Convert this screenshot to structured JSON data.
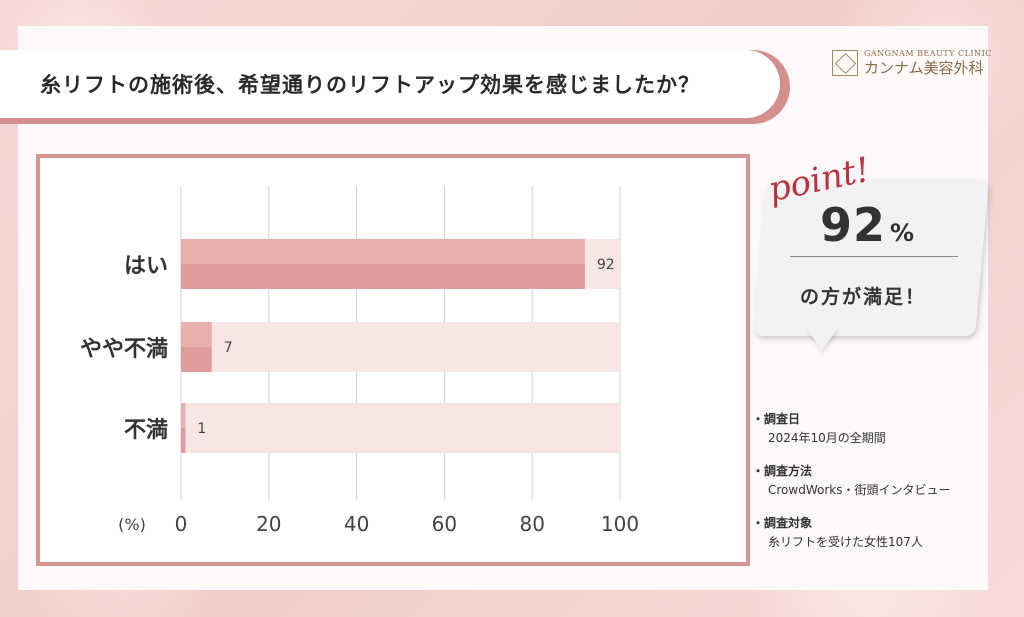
{
  "title": "糸リフトの施術後、希望通りのリフトアップ効果を感じましたか？",
  "logo": {
    "en": "GANGNAM BEAUTY CLINIC",
    "ja": "カンナム美容外科"
  },
  "point": {
    "label": "point!",
    "value": "92",
    "unit": "%",
    "caption": "の方が満足！"
  },
  "notes": [
    {
      "head": "調査日",
      "body": "2024年10月の全期間"
    },
    {
      "head": "調査方法",
      "body": "CrowdWorks・街頭インタビュー"
    },
    {
      "head": "調査対象",
      "body": "糸リフトを受けた女性107人"
    }
  ],
  "colors": {
    "bar": "#de9d9c",
    "bar_light": "#ebb8b6",
    "track": "#f8e6e5",
    "frame": "#d59595",
    "grid": "#d0d0d0"
  },
  "chart_data": {
    "type": "bar",
    "orientation": "horizontal",
    "categories": [
      "はい",
      "やや不満",
      "不満"
    ],
    "values": [
      92,
      7,
      1
    ],
    "xlabel": "(%)",
    "xlim": [
      0,
      100
    ],
    "xticks": [
      0,
      20,
      40,
      60,
      80,
      100
    ],
    "grid": true
  }
}
